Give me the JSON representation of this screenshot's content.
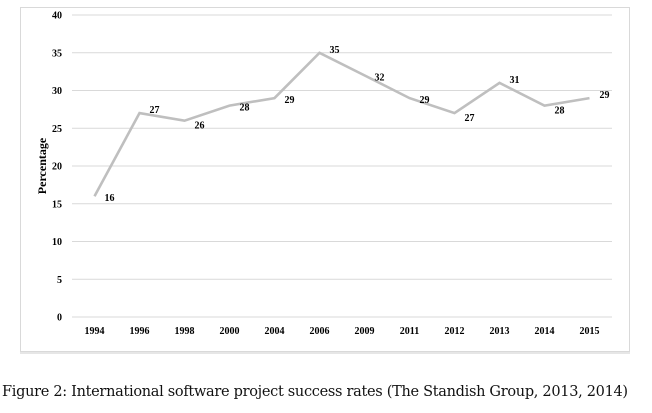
{
  "chart_data": {
    "type": "line",
    "title": "",
    "xlabel": "",
    "ylabel": "Percentage",
    "ylim": [
      0,
      40
    ],
    "yticks": [
      0,
      5,
      10,
      15,
      20,
      25,
      30,
      35,
      40
    ],
    "grid": true,
    "legend": "none",
    "categories": [
      "1994",
      "1996",
      "1998",
      "2000",
      "2004",
      "2006",
      "2009",
      "2011",
      "2012",
      "2013",
      "2014",
      "2015"
    ],
    "series": [
      {
        "name": "Success rate",
        "color": "#bfbfbf",
        "values": [
          16,
          27,
          26,
          28,
          29,
          35,
          32,
          29,
          27,
          31,
          28,
          29
        ]
      }
    ]
  },
  "caption": "Figure 2: International software project success rates (The Standish Group, 2013, 2014)"
}
